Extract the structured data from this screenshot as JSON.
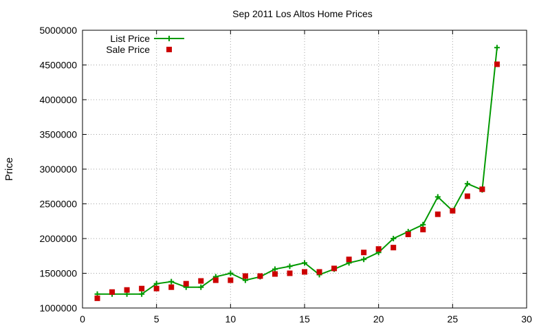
{
  "chart_data": {
    "type": "line",
    "title": "Sep 2011 Los Altos Home Prices",
    "xlabel": "",
    "ylabel": "Price",
    "xlim": [
      0,
      30
    ],
    "ylim": [
      1000000,
      5000000
    ],
    "x_ticks": [
      0,
      5,
      10,
      15,
      20,
      25,
      30
    ],
    "y_ticks": [
      1000000,
      1500000,
      2000000,
      2500000,
      3000000,
      3500000,
      4000000,
      4500000,
      5000000
    ],
    "grid": true,
    "legend_position": "top-left",
    "series": [
      {
        "name": "List Price",
        "style": "line+cross",
        "color": "#009900",
        "x": [
          1,
          2,
          3,
          4,
          5,
          6,
          7,
          8,
          9,
          10,
          11,
          12,
          13,
          14,
          15,
          16,
          17,
          18,
          19,
          20,
          21,
          22,
          23,
          24,
          25,
          26,
          27,
          28
        ],
        "y": [
          1200000,
          1200000,
          1200000,
          1200000,
          1350000,
          1380000,
          1300000,
          1300000,
          1450000,
          1500000,
          1400000,
          1450000,
          1560000,
          1600000,
          1650000,
          1480000,
          1560000,
          1650000,
          1700000,
          1800000,
          2000000,
          2100000,
          2200000,
          2600000,
          2400000,
          2790000,
          2700000,
          4750000
        ]
      },
      {
        "name": "Sale Price",
        "style": "square",
        "color": "#cc0000",
        "x": [
          1,
          2,
          3,
          4,
          5,
          6,
          7,
          8,
          9,
          10,
          11,
          12,
          13,
          14,
          15,
          16,
          17,
          18,
          19,
          20,
          21,
          22,
          23,
          24,
          25,
          26,
          27,
          28
        ],
        "y": [
          1140000,
          1230000,
          1260000,
          1280000,
          1280000,
          1300000,
          1350000,
          1390000,
          1400000,
          1400000,
          1460000,
          1460000,
          1490000,
          1500000,
          1520000,
          1520000,
          1570000,
          1700000,
          1800000,
          1850000,
          1870000,
          2060000,
          2130000,
          2350000,
          2400000,
          2610000,
          2710000,
          4510000
        ]
      }
    ]
  }
}
